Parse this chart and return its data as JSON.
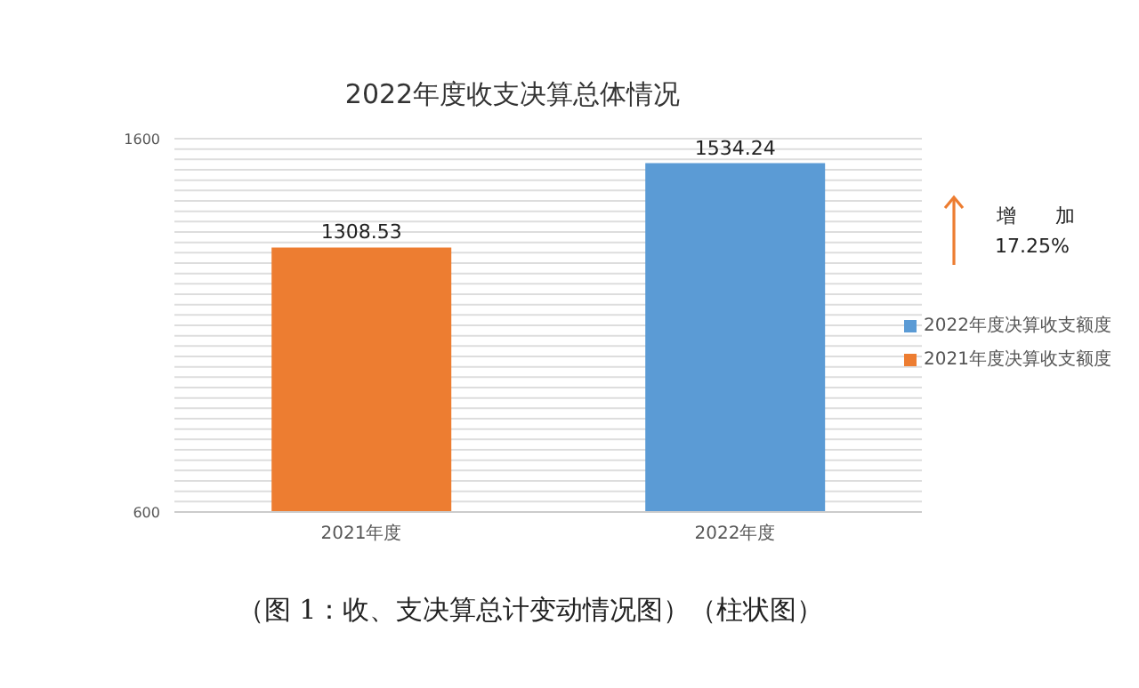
{
  "chart_data": {
    "type": "bar",
    "title": "2022年度收支决算总体情况",
    "categories": [
      "2021年度",
      "2022年度"
    ],
    "series": [
      {
        "name": "2022年度决算收支额度",
        "color": "#5b9bd5",
        "values": [
          null,
          1534.24
        ]
      },
      {
        "name": "2021年度决算收支额度",
        "color": "#ed7d31",
        "values": [
          1308.53,
          null
        ]
      }
    ],
    "ylim": [
      600,
      1600
    ],
    "yticks": [
      600,
      {
        "value": 627.7778,
        "label": null
      },
      {
        "value": 655.5556,
        "label": null
      },
      {
        "value": 683.3333,
        "label": null
      },
      {
        "value": 711.1111,
        "label": null
      },
      {
        "value": 738.8889,
        "label": null
      },
      {
        "value": 766.6667,
        "label": null
      },
      {
        "value": 794.4444,
        "label": null
      },
      {
        "value": 822.2222,
        "label": null
      },
      {
        "value": 850,
        "label": null
      },
      {
        "value": 877.7778,
        "label": null
      },
      {
        "value": 905.5556,
        "label": null
      },
      {
        "value": 933.3333,
        "label": null
      },
      {
        "value": 961.1111,
        "label": null
      },
      {
        "value": 988.8889,
        "label": null
      },
      {
        "value": 1016.6667,
        "label": null
      },
      {
        "value": 1044.4444,
        "label": null
      },
      {
        "value": 1072.2222,
        "label": null
      },
      {
        "value": 1100,
        "label": null
      },
      {
        "value": 1127.7778,
        "label": null
      },
      {
        "value": 1155.5556,
        "label": null
      },
      {
        "value": 1183.3333,
        "label": null
      },
      {
        "value": 1211.1111,
        "label": null
      },
      {
        "value": 1238.8889,
        "label": null
      },
      {
        "value": 1266.6667,
        "label": null
      },
      {
        "value": 1294.4444,
        "label": null
      },
      {
        "value": 1322.2222,
        "label": null
      },
      {
        "value": 1350,
        "label": null
      },
      {
        "value": 1377.7778,
        "label": null
      },
      {
        "value": 1405.5556,
        "label": null
      },
      {
        "value": 1433.3333,
        "label": null
      },
      {
        "value": 1461.1111,
        "label": null
      },
      {
        "value": 1488.8889,
        "label": null
      },
      {
        "value": 1516.6667,
        "label": null
      },
      {
        "value": 1544.4444,
        "label": null
      },
      {
        "value": 1572.2222,
        "label": null
      },
      1600
    ],
    "grid": "y",
    "legend": "right",
    "data_labels": true,
    "annotations": [
      "增　　加",
      "17.25%",
      "（图 1：收、支决算总计变动情况图）（柱状图）"
    ]
  }
}
